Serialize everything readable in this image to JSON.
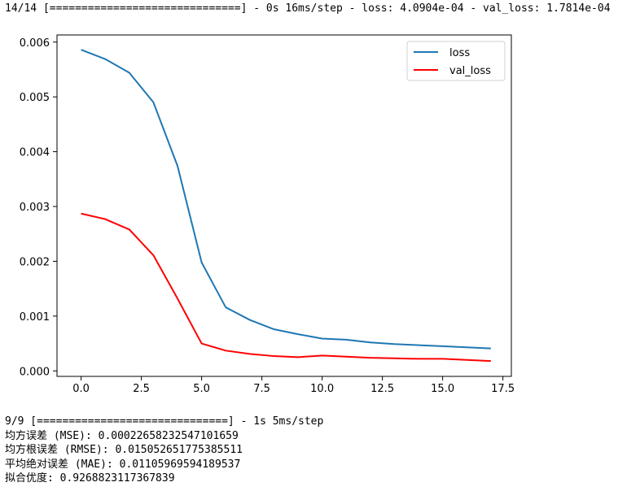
{
  "console": {
    "epoch_line": "14/14 [==============================] - 0s 16ms/step - loss: 4.0904e-04 - val_loss: 1.7814e-04",
    "eval_line": "9/9 [==============================] - 1s 5ms/step",
    "metrics": [
      "均方误差 (MSE): 0.00022658232547101659",
      "均方根误差 (RMSE): 0.015052651775385511",
      "平均绝对误差 (MAE): 0.01105969594189537",
      "拟合优度: 0.9268823117367839"
    ]
  },
  "chart_data": {
    "type": "line",
    "title": "",
    "xlabel": "",
    "ylabel": "",
    "xlim": [
      -1,
      17.85
    ],
    "ylim": [
      -0.0001,
      0.00613
    ],
    "grid": false,
    "legend_position": "top-right",
    "x_ticks": [
      0.0,
      2.5,
      5.0,
      7.5,
      10.0,
      12.5,
      15.0,
      17.5
    ],
    "x_tick_labels": [
      "0.0",
      "2.5",
      "5.0",
      "7.5",
      "10.0",
      "12.5",
      "15.0",
      "17.5"
    ],
    "y_ticks": [
      0.0,
      0.001,
      0.002,
      0.003,
      0.004,
      0.005,
      0.006
    ],
    "y_tick_labels": [
      "0.000",
      "0.001",
      "0.002",
      "0.003",
      "0.004",
      "0.005",
      "0.006"
    ],
    "x": [
      0,
      1,
      2,
      3,
      4,
      5,
      6,
      7,
      8,
      9,
      10,
      11,
      12,
      13,
      14,
      15,
      16,
      17
    ],
    "series": [
      {
        "name": "loss",
        "color": "#1f77b4",
        "values": [
          0.00586,
          0.00569,
          0.00544,
          0.0049,
          0.00374,
          0.00198,
          0.00116,
          0.00093,
          0.00076,
          0.00067,
          0.00059,
          0.00057,
          0.00052,
          0.00049,
          0.00047,
          0.00045,
          0.00043,
          0.00041
        ]
      },
      {
        "name": "val_loss",
        "color": "#ff0000",
        "values": [
          0.00287,
          0.00277,
          0.00258,
          0.00211,
          0.00132,
          0.0005,
          0.00037,
          0.00031,
          0.00027,
          0.00025,
          0.00028,
          0.00026,
          0.00024,
          0.00023,
          0.00022,
          0.00022,
          0.0002,
          0.00018
        ]
      }
    ]
  }
}
